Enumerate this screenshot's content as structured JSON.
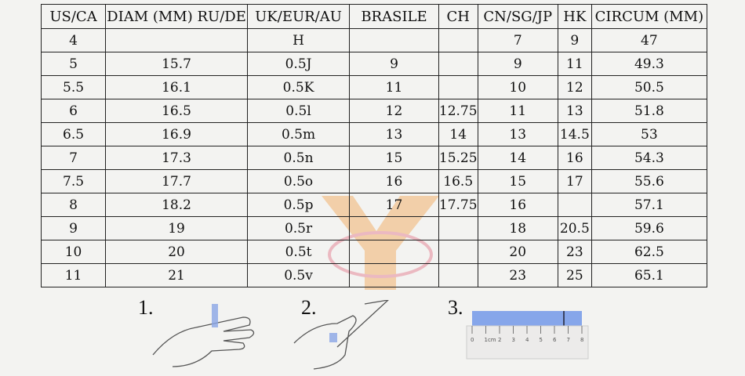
{
  "table": {
    "headers": [
      "US/CA",
      "DIAM (MM) RU/DE",
      "UK/EUR/AU",
      "BRASILE",
      "CH",
      "CN/SG/JP",
      "HK",
      "CIRCUM (MM)"
    ],
    "rows": [
      [
        "4",
        "",
        "H",
        "",
        "",
        "7",
        "9",
        "47"
      ],
      [
        "5",
        "15.7",
        "0.5J",
        "9",
        "",
        "9",
        "11",
        "49.3"
      ],
      [
        "5.5",
        "16.1",
        "0.5K",
        "11",
        "",
        "10",
        "12",
        "50.5"
      ],
      [
        "6",
        "16.5",
        "0.5l",
        "12",
        "12.75",
        "11",
        "13",
        "51.8"
      ],
      [
        "6.5",
        "16.9",
        "0.5m",
        "13",
        "14",
        "13",
        "14.5",
        "53"
      ],
      [
        "7",
        "17.3",
        "0.5n",
        "15",
        "15.25",
        "14",
        "16",
        "54.3"
      ],
      [
        "7.5",
        "17.7",
        "0.5o",
        "16",
        "16.5",
        "15",
        "17",
        "55.6"
      ],
      [
        "8",
        "18.2",
        "0.5p",
        "17",
        "17.75",
        "16",
        "",
        "57.1"
      ],
      [
        "9",
        "19",
        "0.5r",
        "",
        "",
        "18",
        "20.5",
        "59.6"
      ],
      [
        "10",
        "20",
        "0.5t",
        "",
        "",
        "20",
        "23",
        "62.5"
      ],
      [
        "11",
        "21",
        "0.5v",
        "",
        "",
        "23",
        "25",
        "65.1"
      ]
    ]
  },
  "steps": [
    {
      "label": "1."
    },
    {
      "label": "2."
    },
    {
      "label": "3."
    }
  ],
  "ruler": {
    "ticks": [
      "0",
      "1cm",
      "2",
      "3",
      "4",
      "5",
      "6",
      "7",
      "8"
    ],
    "strip_color": "#86a6ea"
  },
  "watermark": {
    "color": "#f2b36f",
    "ring_color": "#e58a9a"
  }
}
